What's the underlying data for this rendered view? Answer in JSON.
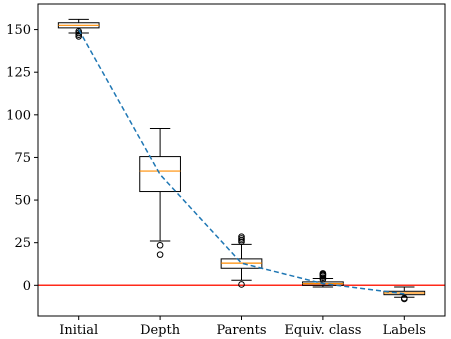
{
  "chart_data": {
    "type": "box",
    "categories": [
      "Initial",
      "Depth",
      "Parents",
      "Equiv. class",
      "Labels"
    ],
    "ylim": [
      -18,
      165
    ],
    "yticks": [
      0,
      25,
      50,
      75,
      100,
      125,
      150
    ],
    "title": "",
    "xlabel": "",
    "ylabel": "",
    "grid": false,
    "boxes": [
      {
        "whislo": 148,
        "q1": 151,
        "med": 152.5,
        "q3": 154,
        "whishi": 156,
        "fliers": [
          146,
          147,
          148,
          149
        ]
      },
      {
        "whislo": 26,
        "q1": 55,
        "med": 67,
        "q3": 75.5,
        "whishi": 92,
        "fliers": [
          18,
          23.5
        ]
      },
      {
        "whislo": 3,
        "q1": 10,
        "med": 13,
        "q3": 15.5,
        "whishi": 24,
        "fliers": [
          0.5,
          25.5,
          26.5,
          27.5,
          28.5
        ]
      },
      {
        "whislo": -1,
        "q1": 0,
        "med": 1,
        "q3": 2,
        "whishi": 4,
        "fliers": [
          3.5,
          4.5,
          5.5,
          6,
          6.5,
          7
        ]
      },
      {
        "whislo": -7,
        "q1": -5.5,
        "med": -4.5,
        "q3": -3.5,
        "whishi": -1,
        "fliers": [
          -7.5,
          -8
        ]
      }
    ],
    "mean_line": {
      "values": [
        150,
        65,
        13,
        1,
        -5
      ],
      "color": "#1f77b4",
      "style": "dashed"
    },
    "reference_line": {
      "y": 0,
      "color": "#ff2a1a"
    },
    "median_color": "#ff8c00"
  }
}
